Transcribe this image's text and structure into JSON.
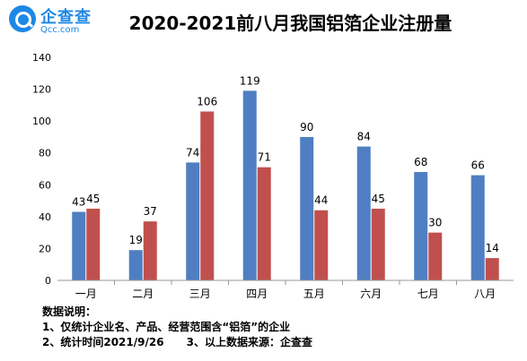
{
  "logo": {
    "name": "企查查",
    "domain": "Qcc.com"
  },
  "chart_data": {
    "type": "bar",
    "title": "2020-2021前八月我国铝箔企业注册量",
    "categories": [
      "一月",
      "二月",
      "三月",
      "四月",
      "五月",
      "六月",
      "七月",
      "八月"
    ],
    "series": [
      {
        "values": [
          43,
          19,
          74,
          119,
          90,
          84,
          68,
          66
        ],
        "color": "#4f7fc2"
      },
      {
        "values": [
          45,
          37,
          106,
          71,
          44,
          45,
          30,
          14
        ],
        "color": "#c0504d"
      }
    ],
    "ylim": [
      0,
      140
    ],
    "yticks": [
      0,
      20,
      40,
      60,
      80,
      100,
      120,
      140
    ],
    "grid": false,
    "legend": "none"
  },
  "notes": {
    "heading": "数据说明：",
    "line1": "1、仅统计企业名、产品、经营范围含“铝箔”的企业",
    "line2": "2、统计时间2021/9/26      3、以上数据来源：企查查"
  }
}
